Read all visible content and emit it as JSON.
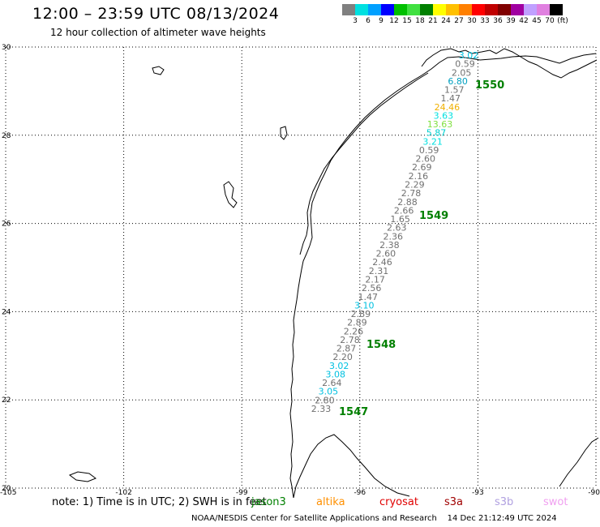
{
  "title": "12:00 – 23:59 UTC 08/13/2024",
  "subtitle": "12 hour collection of altimeter wave heights",
  "legend": {
    "colors": [
      "#808080",
      "#00e0e0",
      "#00a0ff",
      "#0000ff",
      "#00c000",
      "#40e040",
      "#008000",
      "#ffff00",
      "#ffc000",
      "#ff8000",
      "#ff0000",
      "#c00000",
      "#800000",
      "#a000a0",
      "#c0a0ff",
      "#e080e0",
      "#000000"
    ],
    "labels": [
      "3",
      "6",
      "9",
      "12",
      "15",
      "18",
      "21",
      "24",
      "27",
      "30",
      "33",
      "36",
      "39",
      "42",
      "45",
      "70",
      "(ft)"
    ]
  },
  "axes": {
    "lon_ticks": [
      "-105",
      "-102",
      "-99",
      "-96",
      "-93",
      "-90"
    ],
    "lat_ticks": [
      "30",
      "28",
      "26",
      "24",
      "22",
      "20"
    ]
  },
  "passes": [
    {
      "label": "1550",
      "lat": 28.9
    },
    {
      "label": "1549",
      "lat": 26.2
    },
    {
      "label": "1548",
      "lat": 23.3
    },
    {
      "label": "1547",
      "lat": 21.7
    }
  ],
  "observations": [
    {
      "text": "3.02",
      "color": "#00c0e0"
    },
    {
      "text": "0.59",
      "color": "#707070"
    },
    {
      "text": "2.05",
      "color": "#707070"
    },
    {
      "text": "6.80",
      "color": "#00a0c0"
    },
    {
      "text": "1.57",
      "color": "#707070"
    },
    {
      "text": "1.47",
      "color": "#707070"
    },
    {
      "text": "24.46",
      "color": "#f0b000"
    },
    {
      "text": "3.63",
      "color": "#00e0e0"
    },
    {
      "text": "13.63",
      "color": "#80e040"
    },
    {
      "text": "5.87",
      "color": "#00d0d0"
    },
    {
      "text": "3.21",
      "color": "#00e0e0"
    },
    {
      "text": "0.59",
      "color": "#707070"
    },
    {
      "text": "2.60",
      "color": "#707070"
    },
    {
      "text": "2.69",
      "color": "#707070"
    },
    {
      "text": "2.16",
      "color": "#707070"
    },
    {
      "text": "2.29",
      "color": "#707070"
    },
    {
      "text": "2.78",
      "color": "#707070"
    },
    {
      "text": "2.88",
      "color": "#707070"
    },
    {
      "text": "2.66",
      "color": "#707070"
    },
    {
      "text": "1.65",
      "color": "#707070"
    },
    {
      "text": "2.63",
      "color": "#707070"
    },
    {
      "text": "2.36",
      "color": "#707070"
    },
    {
      "text": "2.38",
      "color": "#707070"
    },
    {
      "text": "2.60",
      "color": "#707070"
    },
    {
      "text": "2.46",
      "color": "#707070"
    },
    {
      "text": "2.31",
      "color": "#707070"
    },
    {
      "text": "2.17",
      "color": "#707070"
    },
    {
      "text": "2.56",
      "color": "#707070"
    },
    {
      "text": "1.47",
      "color": "#707070"
    },
    {
      "text": "3.10",
      "color": "#00c0e0"
    },
    {
      "text": "2.89",
      "color": "#707070"
    },
    {
      "text": "2.89",
      "color": "#707070"
    },
    {
      "text": "2.26",
      "color": "#707070"
    },
    {
      "text": "2.78",
      "color": "#707070"
    },
    {
      "text": "2.87",
      "color": "#707070"
    },
    {
      "text": "2.20",
      "color": "#707070"
    },
    {
      "text": "3.02",
      "color": "#00c0e0"
    },
    {
      "text": "3.08",
      "color": "#00c0e0"
    },
    {
      "text": "2.64",
      "color": "#707070"
    },
    {
      "text": "3.05",
      "color": "#00c0e0"
    },
    {
      "text": "2.80",
      "color": "#707070"
    },
    {
      "text": "2.33",
      "color": "#707070"
    }
  ],
  "note": {
    "prefix": "note:  1) Time is in UTC; 2) SWH is in feet",
    "missions": [
      {
        "name": "jason3",
        "color": "#008000"
      },
      {
        "name": "altika",
        "color": "#ff9000"
      },
      {
        "name": "cryosat",
        "color": "#e00000"
      },
      {
        "name": "s3a",
        "color": "#a00000"
      },
      {
        "name": "s3b",
        "color": "#b0a0e0"
      },
      {
        "name": "swot",
        "color": "#f0a0f0"
      }
    ]
  },
  "credit": {
    "org": "NOAA/NESDIS Center for Satellite Applications and Research",
    "timestamp": "14 Dec 21:12:49 UTC 2024"
  }
}
